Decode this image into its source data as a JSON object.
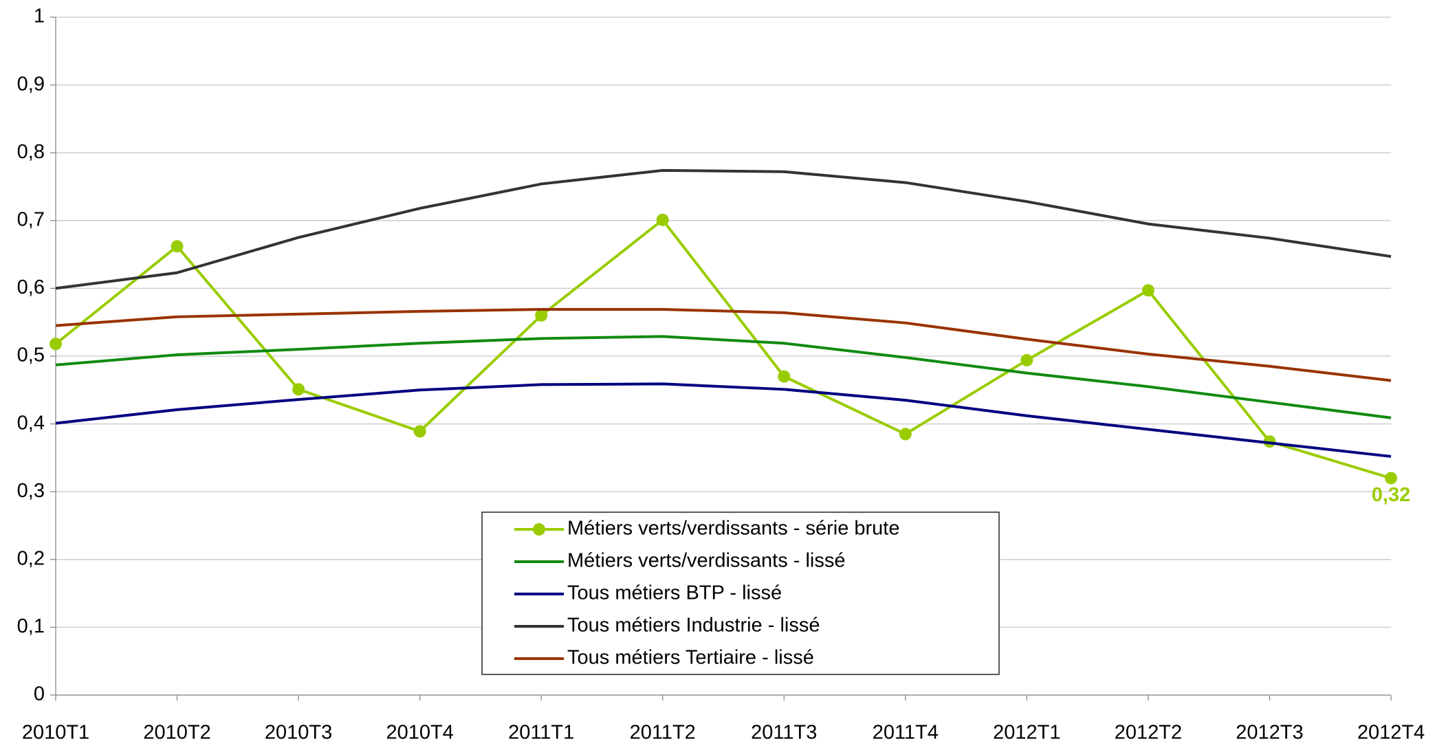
{
  "chart_data": {
    "type": "line",
    "categories": [
      "2010T1",
      "2010T2",
      "2010T3",
      "2010T4",
      "2011T1",
      "2011T2",
      "2011T3",
      "2011T4",
      "2012T1",
      "2012T2",
      "2012T3",
      "2012T4"
    ],
    "series": [
      {
        "name": "Métiers verts/verdissants - série brute",
        "color": "#99cc00",
        "markers": true,
        "values": [
          0.518,
          0.662,
          0.451,
          0.389,
          0.56,
          0.701,
          0.47,
          0.385,
          0.494,
          0.597,
          0.374,
          0.32
        ],
        "value_labels": [
          null,
          null,
          null,
          null,
          null,
          null,
          null,
          null,
          null,
          null,
          null,
          "0,32"
        ]
      },
      {
        "name": "Métiers verts/verdissants - lissé",
        "color": "#108a10",
        "values": [
          0.487,
          0.502,
          0.51,
          0.519,
          0.526,
          0.529,
          0.519,
          0.498,
          0.475,
          0.455,
          0.432,
          0.409
        ]
      },
      {
        "name": "Tous métiers BTP - lissé",
        "color": "#000080",
        "values": [
          0.401,
          0.421,
          0.436,
          0.45,
          0.458,
          0.459,
          0.451,
          0.435,
          0.412,
          0.392,
          0.372,
          0.352
        ]
      },
      {
        "name": "Tous métiers Industrie - lissé",
        "color": "#333333",
        "values": [
          0.6,
          0.623,
          0.675,
          0.718,
          0.754,
          0.774,
          0.772,
          0.756,
          0.728,
          0.695,
          0.674,
          0.647
        ]
      },
      {
        "name": "Tous métiers Tertiaire - lissé",
        "color": "#993300",
        "values": [
          0.545,
          0.558,
          0.562,
          0.566,
          0.569,
          0.569,
          0.564,
          0.549,
          0.525,
          0.503,
          0.485,
          0.464
        ]
      }
    ],
    "ylim": [
      0,
      1
    ],
    "yticks": [
      0,
      {
        "value": 0.1,
        "label": "0,1"
      },
      {
        "value": 0.2,
        "label": "0,2"
      },
      {
        "value": 0.3,
        "label": "0,3"
      },
      {
        "value": 0.4,
        "label": "0,4"
      },
      {
        "value": 0.5,
        "label": "0,5"
      },
      {
        "value": 0.6,
        "label": "0,6"
      },
      {
        "value": 0.7,
        "label": "0,7"
      },
      {
        "value": 0.8,
        "label": "0,8"
      },
      {
        "value": 0.9,
        "label": "0,9"
      },
      1
    ],
    "grid": true,
    "legend": "bottom-center"
  }
}
